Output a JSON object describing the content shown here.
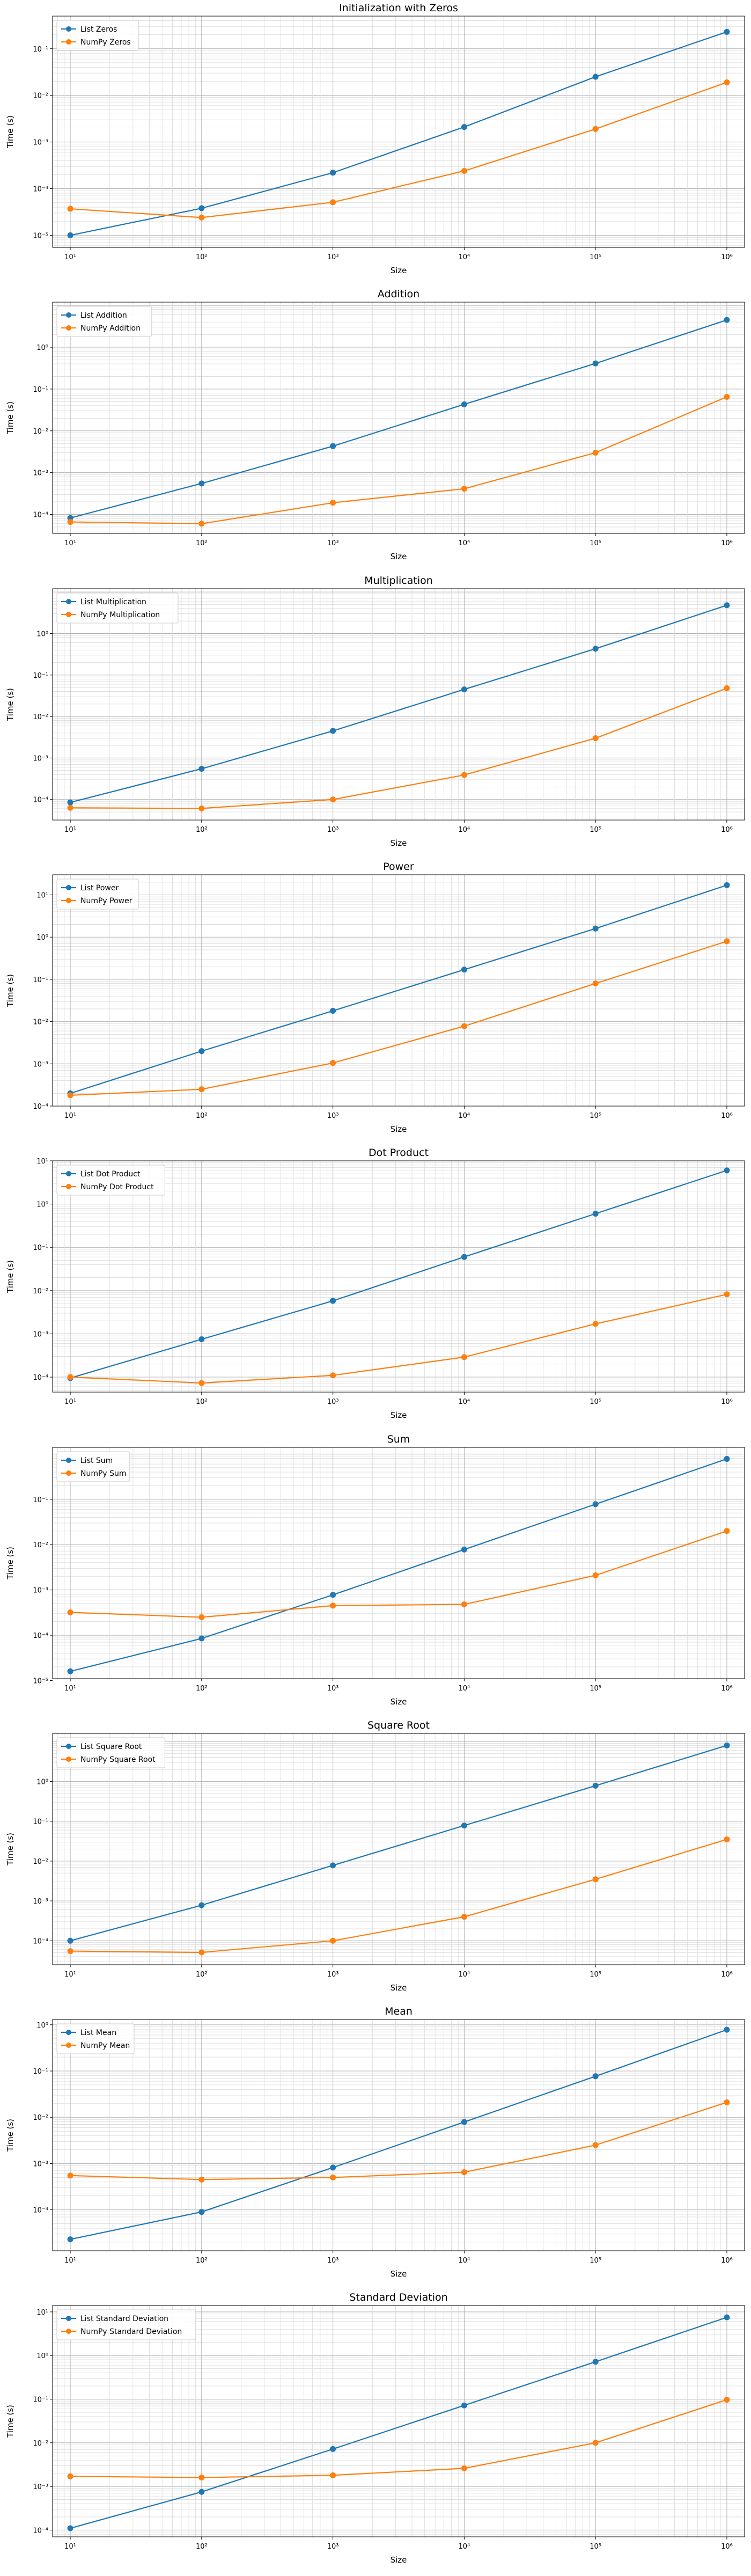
{
  "colors": {
    "list": "#1f77b4",
    "numpy": "#ff7f0e",
    "grid_major": "#b0b0b0",
    "grid_minor": "#d9d9d9"
  },
  "chart_data": [
    {
      "type": "line",
      "title": "Initialization with Zeros",
      "xlabel": "Size",
      "ylabel": "Time (s)",
      "x": [
        10,
        100,
        1000,
        10000,
        100000,
        1000000
      ],
      "xscale": "log",
      "yscale": "log",
      "ylim": [
        5.5e-06,
        0.5
      ],
      "grid": true,
      "legend": "top-left",
      "yticks": [
        {
          "v": 1e-05,
          "b": "10",
          "e": "−5"
        },
        {
          "v": 0.0001,
          "b": "10",
          "e": "−4"
        },
        {
          "v": 0.001,
          "b": "10",
          "e": "−3"
        },
        {
          "v": 0.01,
          "b": "10",
          "e": "−2"
        },
        {
          "v": 0.1,
          "b": "10",
          "e": "−1"
        }
      ],
      "series": [
        {
          "name": "List Zeros",
          "values": [
            1e-05,
            3.8e-05,
            0.00022,
            0.0021,
            0.025,
            0.23
          ]
        },
        {
          "name": "NumPy Zeros",
          "values": [
            3.7e-05,
            2.4e-05,
            5.1e-05,
            0.00024,
            0.0019,
            0.019
          ]
        }
      ]
    },
    {
      "type": "line",
      "title": "Addition",
      "xlabel": "Size",
      "ylabel": "Time (s)",
      "x": [
        10,
        100,
        1000,
        10000,
        100000,
        1000000
      ],
      "xscale": "log",
      "yscale": "log",
      "ylim": [
        3.5e-05,
        12
      ],
      "grid": true,
      "legend": "top-left",
      "yticks": [
        {
          "v": 0.0001,
          "b": "10",
          "e": "−4"
        },
        {
          "v": 0.001,
          "b": "10",
          "e": "−3"
        },
        {
          "v": 0.01,
          "b": "10",
          "e": "−2"
        },
        {
          "v": 0.1,
          "b": "10",
          "e": "−1"
        },
        {
          "v": 1,
          "b": "10",
          "e": "0"
        }
      ],
      "series": [
        {
          "name": "List Addition",
          "values": [
            8.2e-05,
            0.00055,
            0.0043,
            0.043,
            0.41,
            4.5
          ]
        },
        {
          "name": "NumPy Addition",
          "values": [
            6.6e-05,
            6e-05,
            0.00019,
            0.00041,
            0.003,
            0.065
          ]
        }
      ]
    },
    {
      "type": "line",
      "title": "Multiplication",
      "xlabel": "Size",
      "ylabel": "Time (s)",
      "x": [
        10,
        100,
        1000,
        10000,
        100000,
        1000000
      ],
      "xscale": "log",
      "yscale": "log",
      "ylim": [
        3.2e-05,
        12
      ],
      "grid": true,
      "legend": "top-left",
      "yticks": [
        {
          "v": 0.0001,
          "b": "10",
          "e": "−4"
        },
        {
          "v": 0.001,
          "b": "10",
          "e": "−3"
        },
        {
          "v": 0.01,
          "b": "10",
          "e": "−2"
        },
        {
          "v": 0.1,
          "b": "10",
          "e": "−1"
        },
        {
          "v": 1,
          "b": "10",
          "e": "0"
        }
      ],
      "series": [
        {
          "name": "List Multiplication",
          "values": [
            8.5e-05,
            0.00055,
            0.0045,
            0.045,
            0.43,
            4.8
          ]
        },
        {
          "name": "NumPy Multiplication",
          "values": [
            6.3e-05,
            6.1e-05,
            0.0001,
            0.00039,
            0.003,
            0.048
          ]
        }
      ]
    },
    {
      "type": "line",
      "title": "Power",
      "xlabel": "Size",
      "ylabel": "Time (s)",
      "x": [
        10,
        100,
        1000,
        10000,
        100000,
        1000000
      ],
      "xscale": "log",
      "yscale": "log",
      "ylim": [
        0.0001,
        30
      ],
      "grid": true,
      "legend": "top-left",
      "yticks": [
        {
          "v": 0.0001,
          "b": "10",
          "e": "−4"
        },
        {
          "v": 0.001,
          "b": "10",
          "e": "−3"
        },
        {
          "v": 0.01,
          "b": "10",
          "e": "−2"
        },
        {
          "v": 0.1,
          "b": "10",
          "e": "−1"
        },
        {
          "v": 1,
          "b": "10",
          "e": "0"
        },
        {
          "v": 10,
          "b": "10",
          "e": "1"
        }
      ],
      "series": [
        {
          "name": "List Power",
          "values": [
            0.0002,
            0.002,
            0.018,
            0.17,
            1.6,
            17
          ]
        },
        {
          "name": "NumPy Power",
          "values": [
            0.00018,
            0.00025,
            0.00105,
            0.0078,
            0.08,
            0.8
          ]
        }
      ]
    },
    {
      "type": "line",
      "title": "Dot Product",
      "xlabel": "Size",
      "ylabel": "Time (s)",
      "x": [
        10,
        100,
        1000,
        10000,
        100000,
        1000000
      ],
      "xscale": "log",
      "yscale": "log",
      "ylim": [
        4.5e-05,
        10
      ],
      "grid": true,
      "legend": "top-left",
      "yticks": [
        {
          "v": 0.0001,
          "b": "10",
          "e": "−4"
        },
        {
          "v": 0.001,
          "b": "10",
          "e": "−3"
        },
        {
          "v": 0.01,
          "b": "10",
          "e": "−2"
        },
        {
          "v": 0.1,
          "b": "10",
          "e": "−1"
        },
        {
          "v": 1,
          "b": "10",
          "e": "0"
        },
        {
          "v": 10,
          "b": "10",
          "e": "1"
        }
      ],
      "series": [
        {
          "name": "List Dot Product",
          "values": [
            9.5e-05,
            0.00075,
            0.0058,
            0.06,
            0.6,
            6
          ]
        },
        {
          "name": "NumPy Dot Product",
          "values": [
            0.0001,
            7.3e-05,
            0.00011,
            0.00029,
            0.0017,
            0.0082
          ]
        }
      ]
    },
    {
      "type": "line",
      "title": "Sum",
      "xlabel": "Size",
      "ylabel": "Time (s)",
      "x": [
        10,
        100,
        1000,
        10000,
        100000,
        1000000
      ],
      "xscale": "log",
      "yscale": "log",
      "ylim": [
        1.1e-05,
        1.4
      ],
      "grid": true,
      "legend": "top-left",
      "yticks": [
        {
          "v": 1e-05,
          "b": "10",
          "e": "−5"
        },
        {
          "v": 0.0001,
          "b": "10",
          "e": "−4"
        },
        {
          "v": 0.001,
          "b": "10",
          "e": "−3"
        },
        {
          "v": 0.01,
          "b": "10",
          "e": "−2"
        },
        {
          "v": 0.1,
          "b": "10",
          "e": "−1"
        }
      ],
      "series": [
        {
          "name": "List Sum",
          "values": [
            1.6e-05,
            8.5e-05,
            0.00078,
            0.0078,
            0.078,
            0.78
          ]
        },
        {
          "name": "NumPy Sum",
          "values": [
            0.00032,
            0.00025,
            0.00045,
            0.00048,
            0.0021,
            0.02
          ]
        }
      ]
    },
    {
      "type": "line",
      "title": "Square Root",
      "xlabel": "Size",
      "ylabel": "Time (s)",
      "x": [
        10,
        100,
        1000,
        10000,
        100000,
        1000000
      ],
      "xscale": "log",
      "yscale": "log",
      "ylim": [
        2.5e-05,
        16
      ],
      "grid": true,
      "legend": "top-left",
      "yticks": [
        {
          "v": 0.0001,
          "b": "10",
          "e": "−4"
        },
        {
          "v": 0.001,
          "b": "10",
          "e": "−3"
        },
        {
          "v": 0.01,
          "b": "10",
          "e": "−2"
        },
        {
          "v": 0.1,
          "b": "10",
          "e": "−1"
        },
        {
          "v": 1,
          "b": "10",
          "e": "0"
        }
      ],
      "series": [
        {
          "name": "List Square Root",
          "values": [
            0.0001,
            0.00078,
            0.0078,
            0.078,
            0.78,
            8
          ]
        },
        {
          "name": "NumPy Square Root",
          "values": [
            5.5e-05,
            5.1e-05,
            0.0001,
            0.0004,
            0.0035,
            0.035
          ]
        }
      ]
    },
    {
      "type": "line",
      "title": "Mean",
      "xlabel": "Size",
      "ylabel": "Time (s)",
      "x": [
        10,
        100,
        1000,
        10000,
        100000,
        1000000
      ],
      "xscale": "log",
      "yscale": "log",
      "ylim": [
        1.3e-05,
        1.3
      ],
      "grid": true,
      "legend": "top-left",
      "yticks": [
        {
          "v": 0.0001,
          "b": "10",
          "e": "−4"
        },
        {
          "v": 0.001,
          "b": "10",
          "e": "−3"
        },
        {
          "v": 0.01,
          "b": "10",
          "e": "−2"
        },
        {
          "v": 0.1,
          "b": "10",
          "e": "−1"
        },
        {
          "v": 1,
          "b": "10",
          "e": "0"
        }
      ],
      "series": [
        {
          "name": "List Mean",
          "values": [
            2.3e-05,
            9e-05,
            0.00082,
            0.0079,
            0.077,
            0.78
          ]
        },
        {
          "name": "NumPy Mean",
          "values": [
            0.00055,
            0.00045,
            0.0005,
            0.00065,
            0.0025,
            0.021
          ]
        }
      ]
    },
    {
      "type": "line",
      "title": "Standard Deviation",
      "xlabel": "Size",
      "ylabel": "Time (s)",
      "x": [
        10,
        100,
        1000,
        10000,
        100000,
        1000000
      ],
      "xscale": "log",
      "yscale": "log",
      "ylim": [
        7e-05,
        14
      ],
      "grid": true,
      "legend": "top-left",
      "yticks": [
        {
          "v": 0.0001,
          "b": "10",
          "e": "−4"
        },
        {
          "v": 0.001,
          "b": "10",
          "e": "−3"
        },
        {
          "v": 0.01,
          "b": "10",
          "e": "−2"
        },
        {
          "v": 0.1,
          "b": "10",
          "e": "−1"
        },
        {
          "v": 1,
          "b": "10",
          "e": "0"
        },
        {
          "v": 10,
          "b": "10",
          "e": "1"
        }
      ],
      "series": [
        {
          "name": "List Standard Deviation",
          "values": [
            0.00011,
            0.00075,
            0.0072,
            0.072,
            0.72,
            7.5
          ]
        },
        {
          "name": "NumPy Standard Deviation",
          "values": [
            0.0017,
            0.0016,
            0.0018,
            0.0026,
            0.01,
            0.097
          ]
        }
      ]
    }
  ]
}
